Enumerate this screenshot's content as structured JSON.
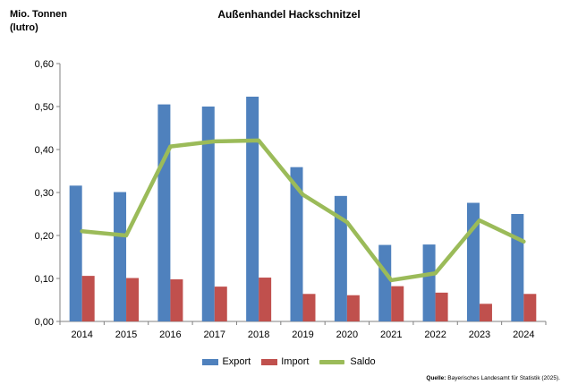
{
  "chart_data": {
    "type": "bar",
    "title": "Außenhandel Hackschnitzel",
    "ylabel_line1": "Mio. Tonnen",
    "ylabel_line2": "(lutro)",
    "xlabel": "",
    "ylim": [
      0,
      0.6
    ],
    "y_ticks": [
      0,
      0.1,
      0.2,
      0.3,
      0.4,
      0.5,
      0.6
    ],
    "y_tick_labels": [
      "0,00",
      "0,10",
      "0,20",
      "0,30",
      "0,40",
      "0,50",
      "0,60"
    ],
    "grid": false,
    "legend_position": "bottom",
    "categories": [
      "2014",
      "2015",
      "2016",
      "2017",
      "2018",
      "2019",
      "2020",
      "2021",
      "2022",
      "2023",
      "2024"
    ],
    "series": [
      {
        "name": "Export",
        "kind": "bar",
        "color": "#4f81bd",
        "values": [
          0.316,
          0.301,
          0.505,
          0.5,
          0.523,
          0.359,
          0.292,
          0.178,
          0.179,
          0.276,
          0.25
        ]
      },
      {
        "name": "Import",
        "kind": "bar",
        "color": "#c0504d",
        "values": [
          0.106,
          0.101,
          0.098,
          0.081,
          0.102,
          0.064,
          0.061,
          0.082,
          0.067,
          0.041,
          0.064
        ]
      },
      {
        "name": "Saldo",
        "kind": "line",
        "color": "#9bbb59",
        "values": [
          0.21,
          0.2,
          0.407,
          0.419,
          0.421,
          0.295,
          0.231,
          0.096,
          0.112,
          0.235,
          0.186
        ]
      }
    ],
    "source_label": "Quelle:",
    "source_text": "Bayerisches Landesamt für Statistik (2025)."
  }
}
